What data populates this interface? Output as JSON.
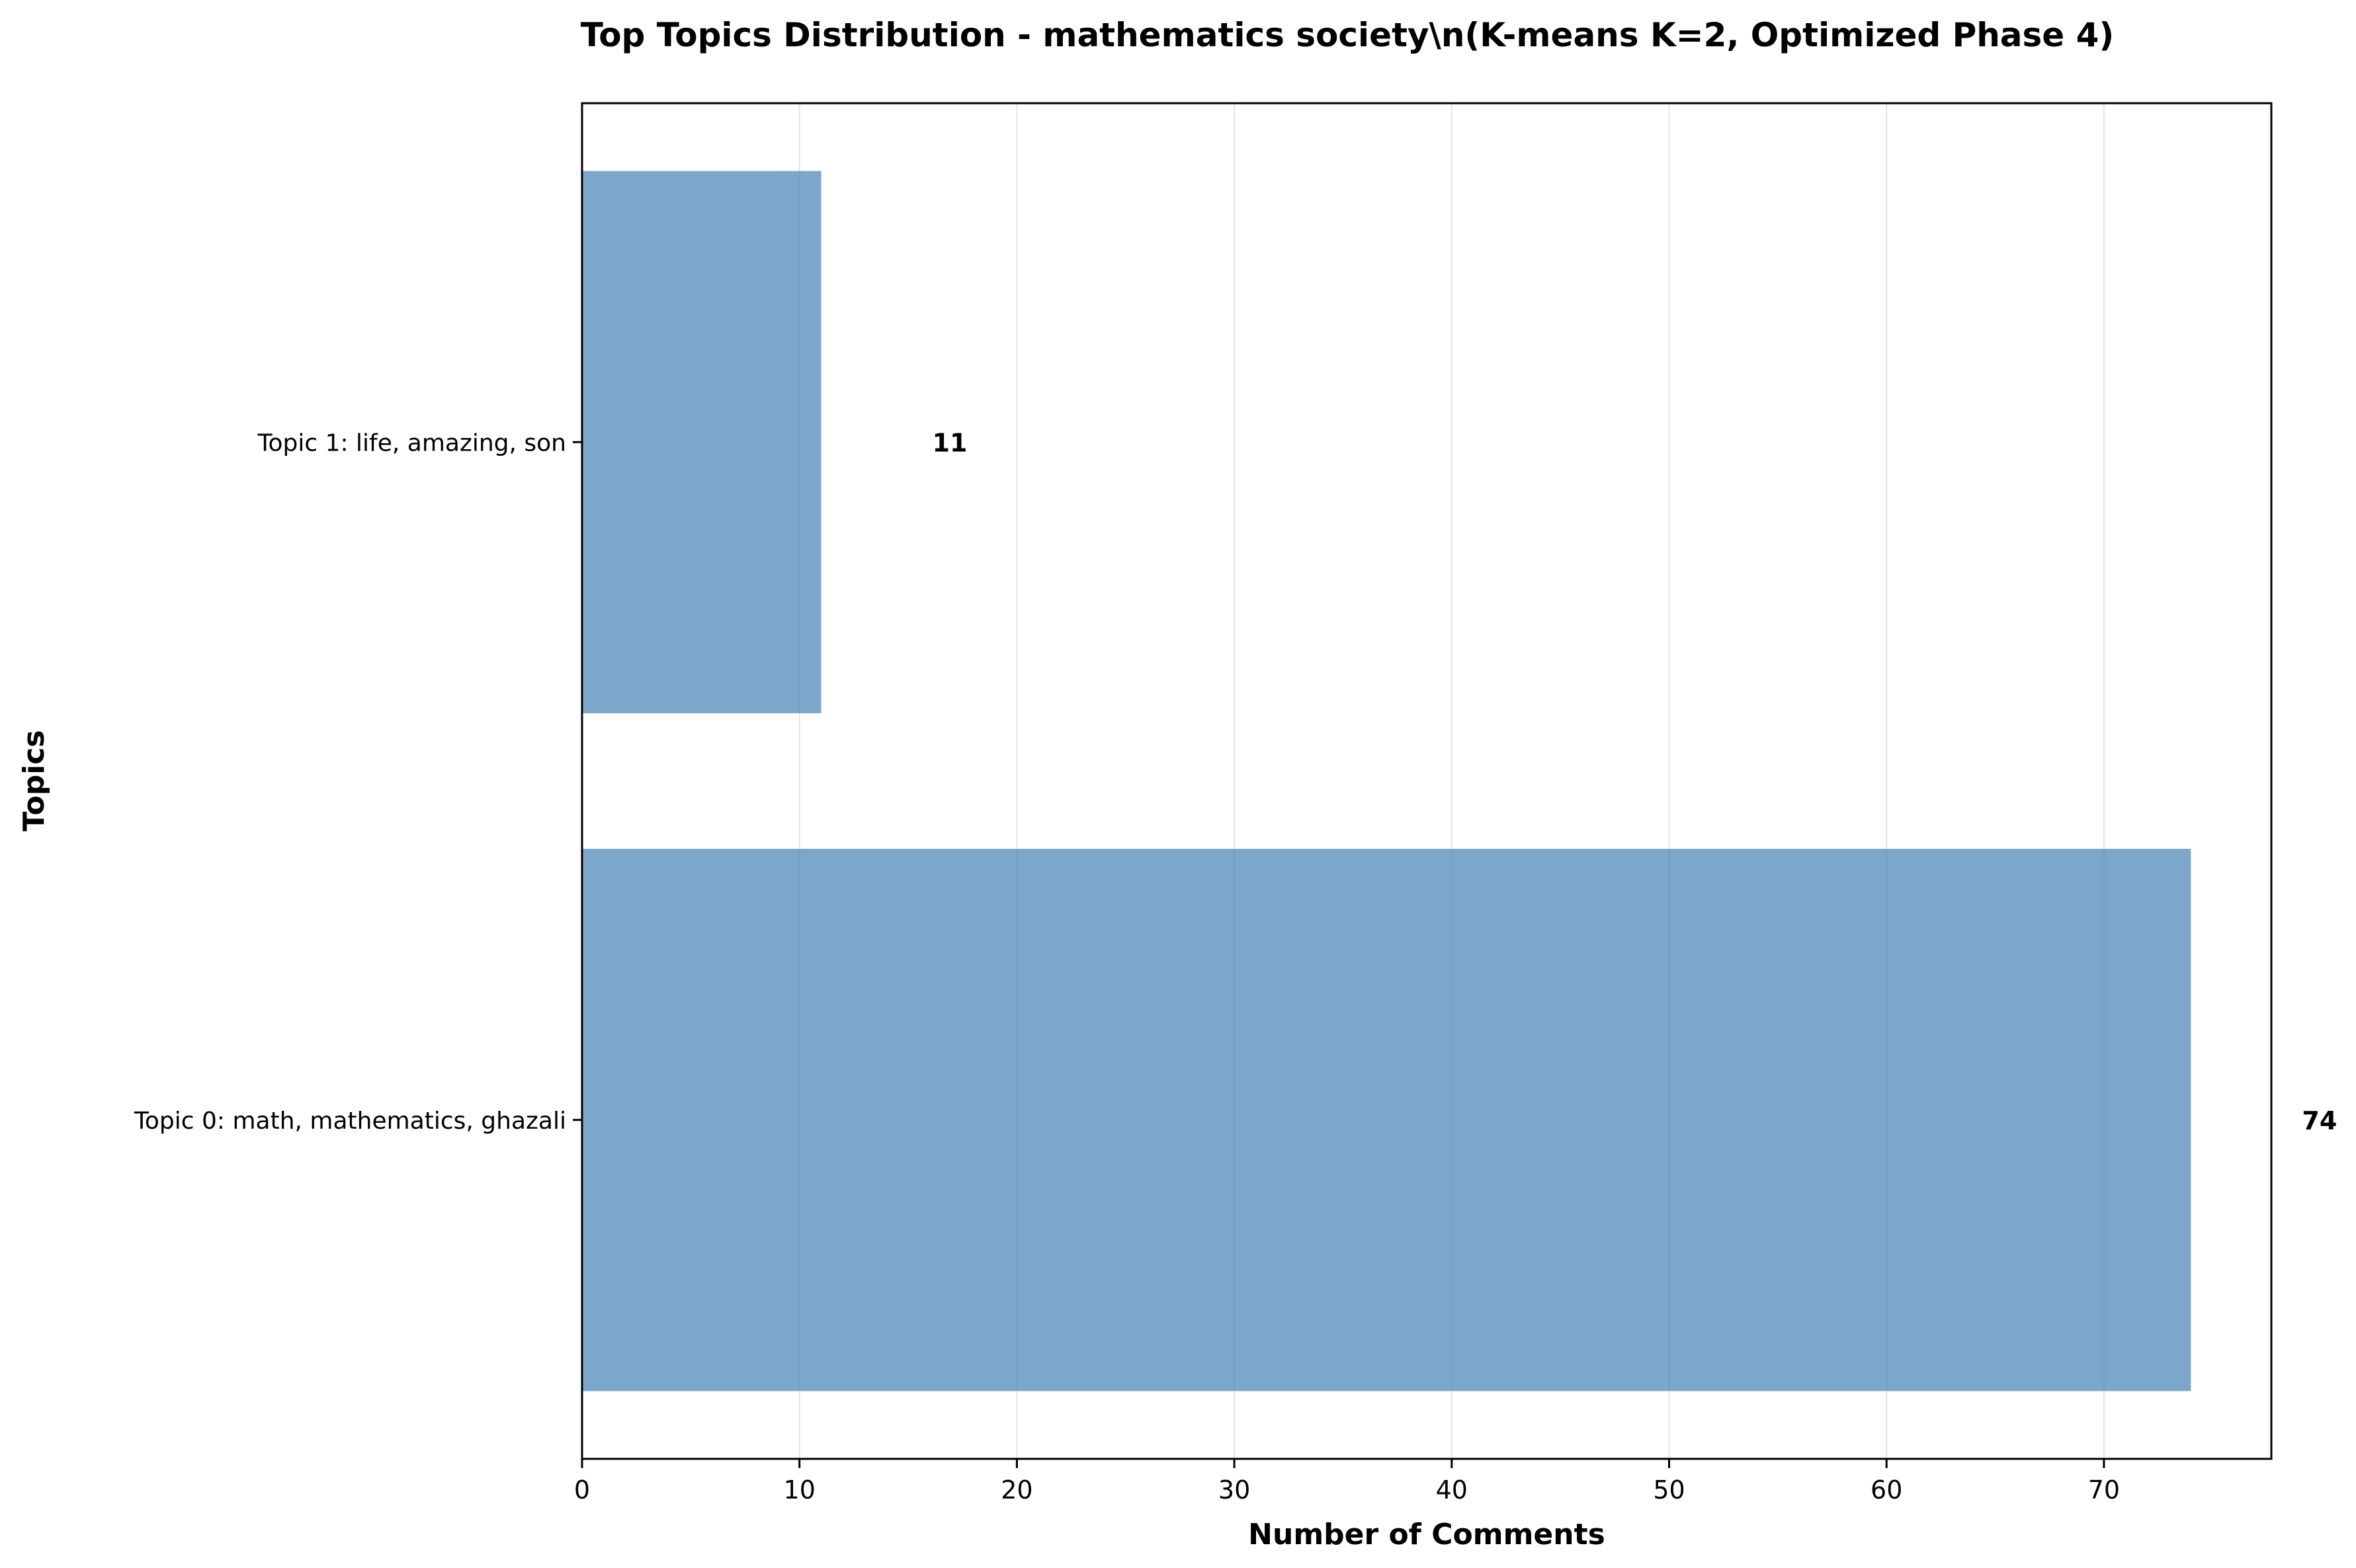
{
  "chart_data": {
    "type": "bar",
    "orientation": "horizontal",
    "title": "Top Topics Distribution - mathematics society\\n(K-means K=2, Optimized Phase 4)",
    "xlabel": "Number of Comments",
    "ylabel": "Topics",
    "categories": [
      "Topic 0: math, mathematics, ghazali",
      "Topic 1: life, amazing, son"
    ],
    "values": [
      74,
      11
    ],
    "xlim": [
      0,
      77.7
    ],
    "xticks": [
      0,
      10,
      20,
      30,
      40,
      50,
      60,
      70
    ],
    "grid": "x",
    "legend": "none",
    "bar_color": "#4682b4"
  }
}
